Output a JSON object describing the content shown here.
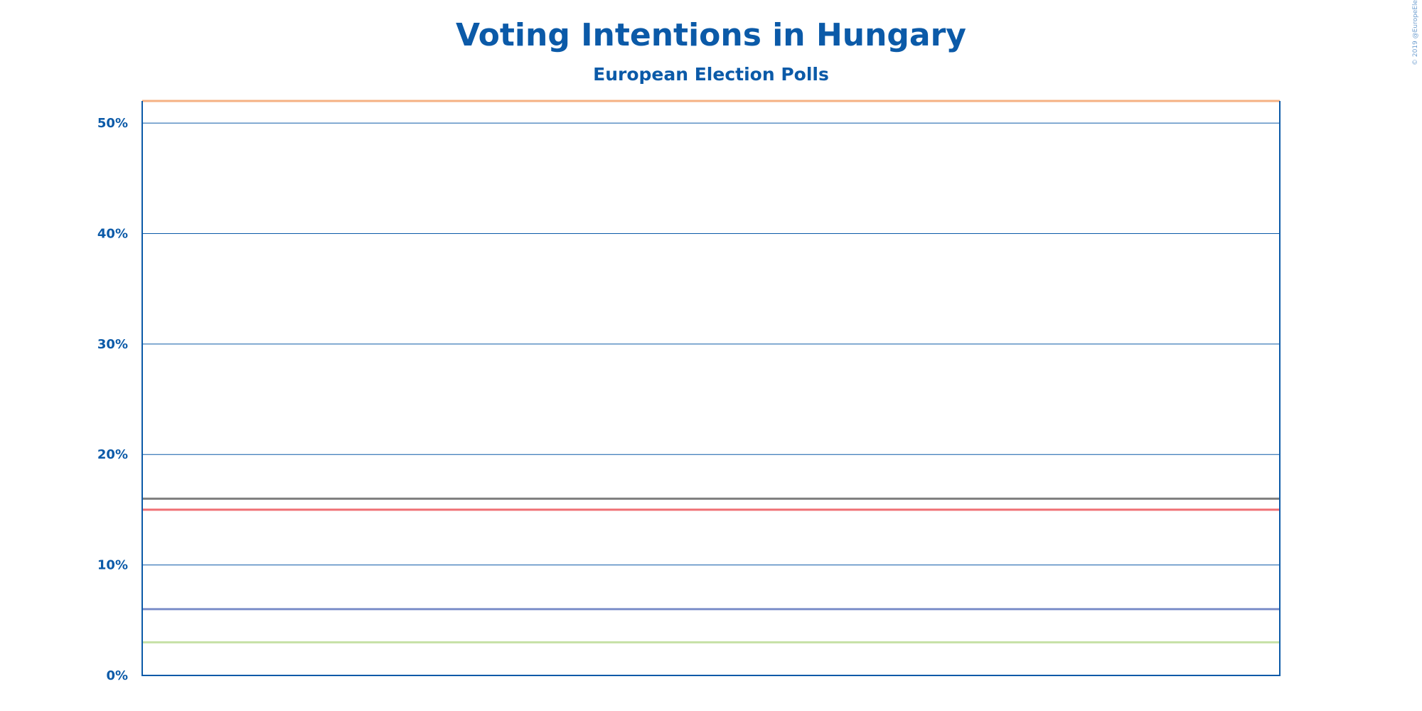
{
  "chart_data": {
    "type": "line",
    "title": "Voting Intentions in Hungary",
    "subtitle": "European Election Polls",
    "copyright": "© 2019 @EuropeElects",
    "xlabel": "",
    "ylabel": "",
    "ylim": [
      0,
      52
    ],
    "y_ticks": [
      {
        "value": 0,
        "label": "0%"
      },
      {
        "value": 10,
        "label": "10%"
      },
      {
        "value": 20,
        "label": "20%"
      },
      {
        "value": 30,
        "label": "30%"
      },
      {
        "value": 40,
        "label": "40%"
      },
      {
        "value": 50,
        "label": "50%"
      }
    ],
    "grid": true,
    "series": [
      {
        "color": "#f5b183",
        "values": [
          52,
          52
        ]
      },
      {
        "color": "#7f7f7f",
        "values": [
          16,
          16
        ]
      },
      {
        "color": "#ef6f74",
        "values": [
          15,
          15
        ]
      },
      {
        "color": "#7d8fc9",
        "values": [
          6,
          6
        ]
      },
      {
        "color": "#c6e1a6",
        "values": [
          3,
          3
        ]
      }
    ]
  }
}
